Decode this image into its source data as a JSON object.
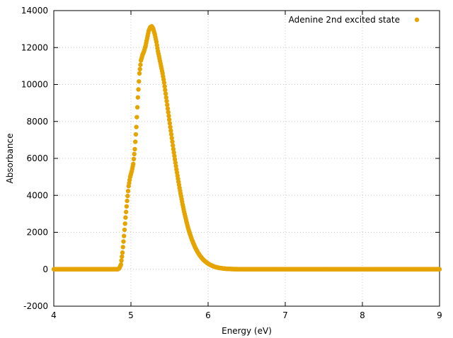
{
  "chart_data": {
    "type": "scatter",
    "title": "",
    "xlabel": "Energy (eV)",
    "ylabel": "Absorbance",
    "xlim": [
      4,
      9
    ],
    "ylim": [
      -2000,
      14000
    ],
    "xticks": [
      4,
      5,
      6,
      7,
      8,
      9
    ],
    "xtick_labels": [
      "4",
      "5",
      "6",
      "7",
      "8",
      "9"
    ],
    "yticks": [
      -2000,
      0,
      2000,
      4000,
      6000,
      8000,
      10000,
      12000,
      14000
    ],
    "ytick_labels": [
      "-2000",
      "0",
      "2000",
      "4000",
      "6000",
      "8000",
      "10000",
      "12000",
      "14000"
    ],
    "grid": true,
    "legend_position": "top-right",
    "series": [
      {
        "name": "Adenine 2nd excited state",
        "color": "#e5a400",
        "x": [
          4.0,
          4.2,
          4.4,
          4.6,
          4.75,
          4.83,
          4.85,
          4.87,
          4.89,
          4.91,
          4.93,
          4.95,
          4.97,
          4.99,
          5.01,
          5.03,
          5.05,
          5.07,
          5.09,
          5.11,
          5.13,
          5.15,
          5.17,
          5.19,
          5.21,
          5.23,
          5.25,
          5.27,
          5.29,
          5.31,
          5.33,
          5.35,
          5.37,
          5.39,
          5.41,
          5.43,
          5.45,
          5.47,
          5.49,
          5.51,
          5.53,
          5.55,
          5.57,
          5.59,
          5.61,
          5.63,
          5.65,
          5.67,
          5.69,
          5.71,
          5.73,
          5.75,
          5.77,
          5.79,
          5.81,
          5.83,
          5.85,
          5.87,
          5.89,
          5.91,
          5.93,
          5.95,
          5.97,
          5.99,
          6.01,
          6.03,
          6.05,
          6.07,
          6.09,
          6.11,
          6.13,
          6.15,
          6.17,
          6.19,
          6.21,
          6.23,
          6.25,
          6.27,
          6.29,
          6.31,
          6.33,
          6.35,
          6.37,
          6.39,
          6.41,
          6.43,
          6.45,
          6.47,
          6.49,
          6.51,
          6.55,
          6.6,
          6.8,
          7.0,
          7.5,
          8.0,
          8.5,
          9.0
        ],
        "y": [
          0,
          0,
          0,
          0,
          0,
          0,
          60,
          250,
          900,
          1800,
          2800,
          3700,
          4500,
          5000,
          5300,
          5700,
          6500,
          7700,
          9300,
          10600,
          11300,
          11600,
          11800,
          12100,
          12500,
          12900,
          13100,
          13150,
          13000,
          12700,
          12300,
          11800,
          11400,
          11000,
          10600,
          10100,
          9500,
          8900,
          8300,
          7700,
          7100,
          6500,
          5950,
          5400,
          4900,
          4400,
          3950,
          3500,
          3100,
          2750,
          2400,
          2100,
          1850,
          1600,
          1400,
          1200,
          1040,
          890,
          760,
          650,
          550,
          470,
          400,
          335,
          280,
          235,
          195,
          160,
          130,
          105,
          85,
          70,
          56,
          45,
          36,
          28,
          22,
          17,
          13,
          10,
          8,
          6,
          5,
          4,
          3,
          2,
          1,
          1,
          0,
          0,
          0,
          0,
          0,
          0,
          0,
          0,
          0,
          0
        ]
      }
    ]
  }
}
